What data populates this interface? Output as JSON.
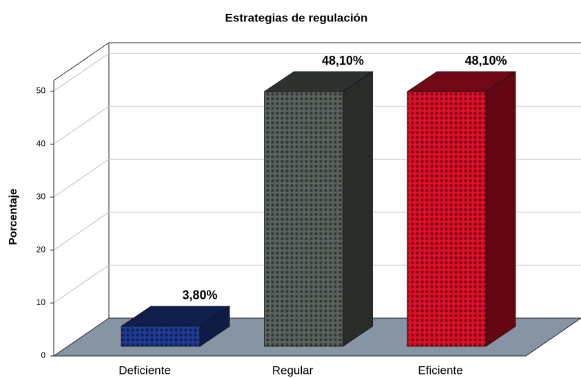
{
  "chart_data": {
    "type": "bar3d",
    "title": "Estrategias de regulación",
    "y_label": "Porcentaje",
    "categories": [
      "Deficiente",
      "Regular",
      "Eficiente"
    ],
    "values": [
      3.8,
      48.1,
      48.1
    ],
    "value_labels": [
      "3,80%",
      "48,10%",
      "48,10%"
    ],
    "colors": [
      "#1f3c96",
      "#5b645e",
      "#e0102a"
    ],
    "ylim": [
      0,
      52
    ],
    "yticks": [
      0,
      10,
      20,
      30,
      40,
      50
    ],
    "grid": true
  }
}
